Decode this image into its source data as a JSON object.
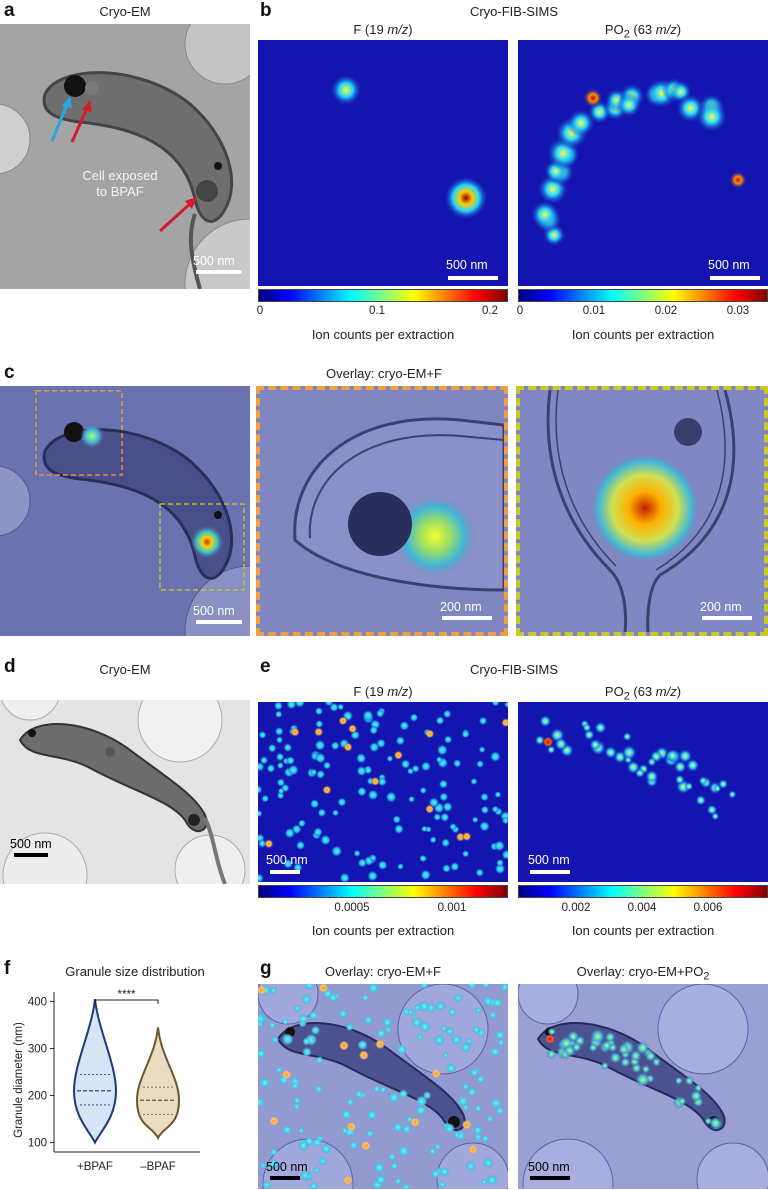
{
  "panels": {
    "a": {
      "label": "a",
      "title": "Cryo-EM",
      "annotation_line1": "Cell exposed",
      "annotation_line2": "to BPAF",
      "scalebar": "500 nm"
    },
    "b": {
      "label": "b",
      "title": "Cryo-FIB-SIMS",
      "map_f": {
        "title_main": "F (19 ",
        "title_it": "m/z",
        "title_end": ")",
        "scalebar": "500 nm",
        "ticks": [
          "0",
          "0.1",
          "0.2"
        ],
        "cbar_label": "Ion counts per extraction"
      },
      "map_po2": {
        "title_main": "PO",
        "title_sub": "2",
        "title_mid": " (63 ",
        "title_it": "m/z",
        "title_end": ")",
        "scalebar": "500 nm",
        "ticks": [
          "0",
          "0.01",
          "0.02",
          "0.03"
        ],
        "cbar_label": "Ion counts per extraction"
      }
    },
    "c": {
      "label": "c",
      "title": "Overlay: cryo-EM+F",
      "scalebar_main": "500 nm",
      "scalebar_zoom1": "200 nm",
      "scalebar_zoom2": "200 nm"
    },
    "d": {
      "label": "d",
      "title": "Cryo-EM",
      "scalebar": "500 nm"
    },
    "e": {
      "label": "e",
      "title": "Cryo-FIB-SIMS",
      "map_f": {
        "title_main": "F (19 ",
        "title_it": "m/z",
        "title_end": ")",
        "scalebar": "500 nm",
        "ticks": [
          "0.0005",
          "0.001"
        ],
        "cbar_label": "Ion counts per extraction"
      },
      "map_po2": {
        "title_main": "PO",
        "title_sub": "2",
        "title_mid": " (63 ",
        "title_it": "m/z",
        "title_end": ")",
        "scalebar": "500 nm",
        "ticks": [
          "0.002",
          "0.004",
          "0.006"
        ],
        "cbar_label": "Ion counts per extraction"
      }
    },
    "f": {
      "label": "f",
      "title": "Granule size distribution",
      "significance": "****"
    },
    "g": {
      "label": "g",
      "title_f": "Overlay: cryo-EM+F",
      "title_po2_main": "Overlay: cryo-EM+PO",
      "title_po2_sub": "2",
      "scalebar_f": "500 nm",
      "scalebar_po2": "500 nm"
    }
  },
  "chart_data": {
    "type": "violin",
    "title": "Granule size distribution",
    "ylabel": "Granule diameter (nm)",
    "ylim": [
      80,
      420
    ],
    "yticks": [
      100,
      200,
      300,
      400
    ],
    "categories": [
      "+BPAF",
      "–BPAF"
    ],
    "series": [
      {
        "name": "+BPAF",
        "color": "#1b3a7a",
        "fill": "#d6e4f5",
        "min": 100,
        "q1": 180,
        "median": 210,
        "q3": 245,
        "max": 405
      },
      {
        "name": "–BPAF",
        "color": "#6b5630",
        "fill": "#e9dcc0",
        "min": 110,
        "q1": 160,
        "median": 190,
        "q3": 218,
        "max": 345
      }
    ],
    "annotation": "****"
  },
  "colors": {
    "orange_box": "#f0a040",
    "yellow_box": "#c9c92a",
    "blue_arrow": "#2aa7e0",
    "red_arrow": "#d11c2a"
  }
}
